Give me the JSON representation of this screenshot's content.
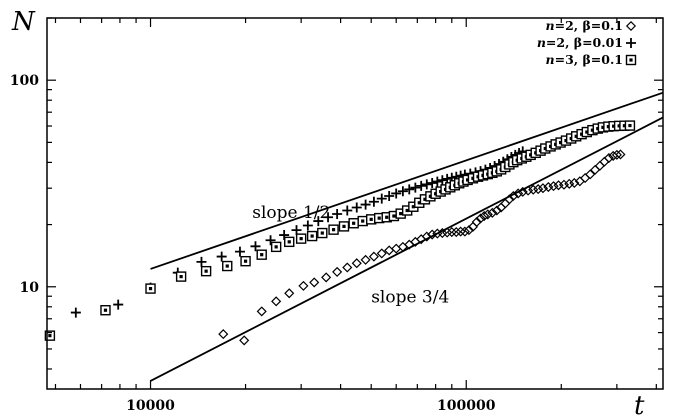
{
  "chart_data": {
    "type": "scatter",
    "title": "",
    "xlabel": "t",
    "ylabel": "N",
    "xscale": "log",
    "yscale": "log",
    "xlim": [
      4700,
      420000
    ],
    "ylim": [
      3.2,
      200
    ],
    "xticks": [
      {
        "value": 10000,
        "label": "10000"
      },
      {
        "value": 100000,
        "label": "100000"
      }
    ],
    "yticks": [
      {
        "value": 10,
        "label": "10"
      },
      {
        "value": 100,
        "label": "100"
      }
    ],
    "grid": false,
    "legend_position": "top-right",
    "series": [
      {
        "name": "n=2, β=0.1",
        "legend": {
          "n": "n",
          "n_val": "=2, ",
          "beta": "β=0.1"
        },
        "marker": "diamond",
        "points": [
          [
            17000,
            5.9
          ],
          [
            19800,
            5.5
          ],
          [
            22500,
            7.6
          ],
          [
            25000,
            8.5
          ],
          [
            27500,
            9.3
          ],
          [
            30500,
            10.1
          ],
          [
            33000,
            10.5
          ],
          [
            36000,
            11.1
          ],
          [
            39000,
            11.8
          ],
          [
            42000,
            12.4
          ],
          [
            45000,
            13.0
          ],
          [
            48000,
            13.5
          ],
          [
            51000,
            14.0
          ],
          [
            54000,
            14.5
          ],
          [
            57000,
            15.0
          ],
          [
            60000,
            15.3
          ],
          [
            63000,
            15.6
          ],
          [
            66000,
            16.0
          ],
          [
            69000,
            16.5
          ],
          [
            72000,
            17.0
          ],
          [
            75000,
            17.5
          ],
          [
            78000,
            17.9
          ],
          [
            81000,
            18.1
          ],
          [
            84000,
            18.2
          ],
          [
            87000,
            18.3
          ],
          [
            90000,
            18.4
          ],
          [
            93000,
            18.4
          ],
          [
            96000,
            18.5
          ],
          [
            99000,
            18.5
          ],
          [
            102000,
            18.8
          ],
          [
            105000,
            19.5
          ],
          [
            108000,
            20.6
          ],
          [
            111000,
            21.4
          ],
          [
            114000,
            22.0
          ],
          [
            117000,
            22.4
          ],
          [
            121000,
            22.8
          ],
          [
            125000,
            23.4
          ],
          [
            129000,
            24.2
          ],
          [
            133000,
            25.3
          ],
          [
            137000,
            26.5
          ],
          [
            141000,
            27.5
          ],
          [
            146000,
            28.3
          ],
          [
            151000,
            28.8
          ],
          [
            157000,
            29.2
          ],
          [
            163000,
            29.5
          ],
          [
            169000,
            29.7
          ],
          [
            175000,
            30.0
          ],
          [
            182000,
            30.4
          ],
          [
            189000,
            30.7
          ],
          [
            196000,
            31.0
          ],
          [
            204000,
            31.2
          ],
          [
            212000,
            31.5
          ],
          [
            220000,
            31.8
          ],
          [
            229000,
            32.4
          ],
          [
            238000,
            33.6
          ],
          [
            247000,
            35.0
          ],
          [
            256000,
            36.8
          ],
          [
            265000,
            38.5
          ],
          [
            274000,
            40.3
          ],
          [
            283000,
            42.0
          ],
          [
            292000,
            43.0
          ],
          [
            300000,
            43.5
          ],
          [
            308000,
            43.7
          ]
        ]
      },
      {
        "name": "n=2, β=0.01",
        "legend": {
          "n": "n",
          "n_val": "=2, ",
          "beta": "β=0.01"
        },
        "marker": "plus",
        "points": [
          [
            5800,
            7.5
          ],
          [
            7900,
            8.2
          ],
          [
            10000,
            9.9
          ],
          [
            12200,
            11.7
          ],
          [
            14500,
            13.2
          ],
          [
            16800,
            14.0
          ],
          [
            19200,
            14.8
          ],
          [
            21500,
            15.7
          ],
          [
            24000,
            16.8
          ],
          [
            26500,
            17.8
          ],
          [
            29000,
            18.8
          ],
          [
            31500,
            19.8
          ],
          [
            34000,
            20.8
          ],
          [
            36500,
            21.7
          ],
          [
            39000,
            22.5
          ],
          [
            42000,
            23.4
          ],
          [
            45000,
            24.2
          ],
          [
            48000,
            25.0
          ],
          [
            51000,
            25.8
          ],
          [
            54000,
            26.7
          ],
          [
            57000,
            27.5
          ],
          [
            60000,
            28.3
          ],
          [
            63000,
            29.0
          ],
          [
            66000,
            29.6
          ],
          [
            69000,
            30.2
          ],
          [
            72000,
            30.8
          ],
          [
            75000,
            31.3
          ],
          [
            78000,
            31.8
          ],
          [
            81000,
            32.3
          ],
          [
            84000,
            32.8
          ],
          [
            87000,
            33.3
          ],
          [
            90000,
            33.7
          ],
          [
            93000,
            34.1
          ],
          [
            96000,
            34.5
          ],
          [
            99000,
            34.9
          ],
          [
            103000,
            35.3
          ],
          [
            107000,
            35.8
          ],
          [
            111000,
            36.3
          ],
          [
            115000,
            36.9
          ],
          [
            119000,
            37.6
          ],
          [
            123000,
            38.4
          ],
          [
            127000,
            39.3
          ],
          [
            131000,
            40.3
          ],
          [
            135000,
            41.4
          ],
          [
            139000,
            42.5
          ],
          [
            143000,
            43.5
          ],
          [
            147000,
            44.4
          ],
          [
            151000,
            45.2
          ]
        ]
      },
      {
        "name": "n=3, β=0.1",
        "legend": {
          "n": "n",
          "n_val": "=3, ",
          "beta": "β=0.1"
        },
        "marker": "square",
        "points": [
          [
            4800,
            5.8
          ],
          [
            7200,
            7.7
          ],
          [
            10000,
            9.8
          ],
          [
            12500,
            11.2
          ],
          [
            15000,
            11.9
          ],
          [
            17500,
            12.6
          ],
          [
            20000,
            13.3
          ],
          [
            22500,
            14.3
          ],
          [
            25000,
            15.6
          ],
          [
            27500,
            16.5
          ],
          [
            30000,
            17.1
          ],
          [
            32500,
            17.6
          ],
          [
            35000,
            18.2
          ],
          [
            38000,
            18.9
          ],
          [
            41000,
            19.6
          ],
          [
            44000,
            20.3
          ],
          [
            47000,
            20.8
          ],
          [
            50000,
            21.2
          ],
          [
            53000,
            21.5
          ],
          [
            56000,
            21.7
          ],
          [
            59000,
            22.0
          ],
          [
            62000,
            22.6
          ],
          [
            65000,
            23.4
          ],
          [
            68000,
            24.4
          ],
          [
            71000,
            25.5
          ],
          [
            74000,
            26.5
          ],
          [
            77000,
            27.4
          ],
          [
            80000,
            28.2
          ],
          [
            83000,
            28.9
          ],
          [
            86000,
            29.6
          ],
          [
            89000,
            30.3
          ],
          [
            92000,
            31.0
          ],
          [
            95000,
            31.7
          ],
          [
            98000,
            32.3
          ],
          [
            101000,
            32.9
          ],
          [
            105000,
            33.5
          ],
          [
            109000,
            34.1
          ],
          [
            113000,
            34.6
          ],
          [
            117000,
            35.1
          ],
          [
            121000,
            35.6
          ],
          [
            125000,
            36.2
          ],
          [
            129000,
            37.0
          ],
          [
            133000,
            38.0
          ],
          [
            137000,
            39.1
          ],
          [
            141000,
            40.1
          ],
          [
            145000,
            41.0
          ],
          [
            150000,
            41.8
          ],
          [
            155000,
            42.6
          ],
          [
            160000,
            43.5
          ],
          [
            166000,
            44.5
          ],
          [
            172000,
            45.6
          ],
          [
            178000,
            46.7
          ],
          [
            185000,
            47.8
          ],
          [
            192000,
            48.9
          ],
          [
            199000,
            49.9
          ],
          [
            207000,
            51.0
          ],
          [
            215000,
            52.2
          ],
          [
            223000,
            53.5
          ],
          [
            232000,
            54.8
          ],
          [
            241000,
            56.1
          ],
          [
            251000,
            57.3
          ],
          [
            261000,
            58.3
          ],
          [
            271000,
            59.1
          ],
          [
            282000,
            59.6
          ],
          [
            293000,
            59.9
          ],
          [
            305000,
            60.1
          ],
          [
            317000,
            60.2
          ],
          [
            330000,
            60.3
          ]
        ]
      }
    ],
    "fit_lines": [
      {
        "label": "slope 1/2",
        "slope": 0.5,
        "from": [
          10000,
          12.2
        ],
        "to": [
          420000,
          87.0
        ]
      },
      {
        "label": "slope 3/4",
        "slope": 0.75,
        "from": [
          10000,
          3.5
        ],
        "to": [
          420000,
          66.0
        ]
      }
    ],
    "annotations": [
      {
        "text": "slope 1/2",
        "at": [
          21000,
          21.5
        ]
      },
      {
        "text": "slope 3/4",
        "at": [
          50000,
          8.4
        ]
      }
    ]
  }
}
